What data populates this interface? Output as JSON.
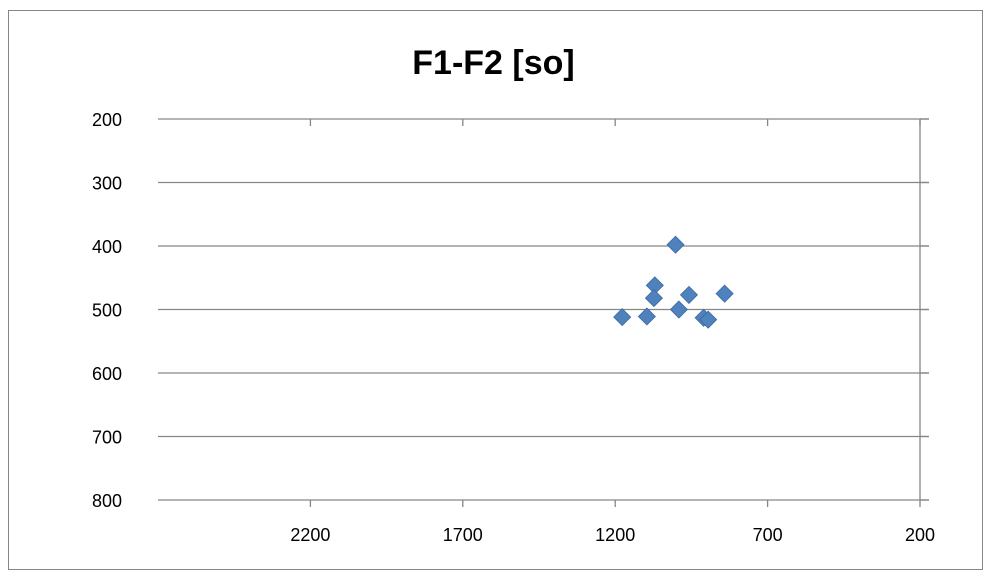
{
  "chart_data": {
    "type": "scatter",
    "title": "F1-F2 [so]",
    "xlabel": "",
    "ylabel": "",
    "xlim": [
      2700,
      200
    ],
    "ylim": [
      800,
      200
    ],
    "x_reversed": true,
    "y_reversed": true,
    "x_ticks": [
      2200,
      1700,
      1200,
      700,
      200
    ],
    "y_ticks": [
      200,
      300,
      400,
      500,
      600,
      700,
      800
    ],
    "grid": "horizontal",
    "legend": "none",
    "marker": "diamond",
    "marker_color": "#4f81bd",
    "series": [
      {
        "points": [
          {
            "x": 1177,
            "y": 512
          },
          {
            "x": 1096,
            "y": 511
          },
          {
            "x": 1070,
            "y": 462
          },
          {
            "x": 1073,
            "y": 482
          },
          {
            "x": 1002,
            "y": 398
          },
          {
            "x": 991,
            "y": 500
          },
          {
            "x": 958,
            "y": 477
          },
          {
            "x": 910,
            "y": 513
          },
          {
            "x": 895,
            "y": 516
          },
          {
            "x": 841,
            "y": 475
          }
        ]
      }
    ]
  }
}
